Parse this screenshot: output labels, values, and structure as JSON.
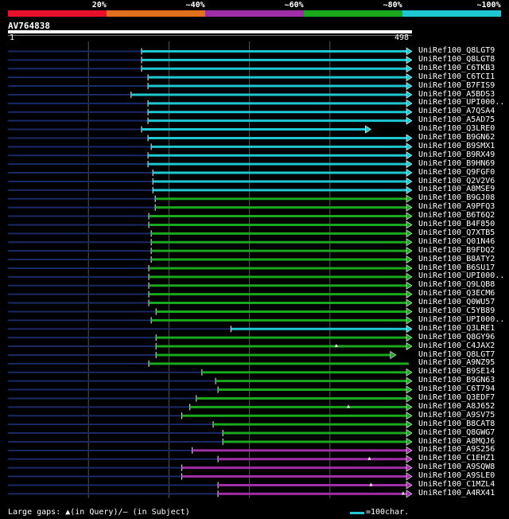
{
  "legend": {
    "segments": [
      {
        "color": "#e8102a",
        "label": "20%"
      },
      {
        "color": "#e0701e",
        "label": "~40%"
      },
      {
        "color": "#a02ea8",
        "label": "~60%"
      },
      {
        "color": "#1aa81e",
        "label": "~80%"
      },
      {
        "color": "#1ec8d2",
        "label": "~100%"
      }
    ]
  },
  "query": {
    "id": "AV764838",
    "start": "1",
    "end": "498"
  },
  "colors": {
    "cyan": "#1ec8d2",
    "green": "#1aa81e",
    "magenta": "#a02ea8",
    "unaligned": "#1a2a66",
    "grid": "#555555"
  },
  "hits": [
    {
      "label": "UniRef100_Q8LGT9",
      "start": 166,
      "end": 498,
      "color": "cyan",
      "arrow": true,
      "marker": null
    },
    {
      "label": "UniRef100_Q8LGT8",
      "start": 166,
      "end": 498,
      "color": "cyan",
      "arrow": true,
      "marker": null
    },
    {
      "label": "UniRef100_C6TKB3",
      "start": 166,
      "end": 498,
      "color": "cyan",
      "arrow": true,
      "marker": null
    },
    {
      "label": "UniRef100_C6TCI1",
      "start": 174,
      "end": 498,
      "color": "cyan",
      "arrow": true,
      "marker": null
    },
    {
      "label": "UniRef100_B7FIS9",
      "start": 174,
      "end": 498,
      "color": "cyan",
      "arrow": true,
      "marker": null
    },
    {
      "label": "UniRef100_A5BDS3",
      "start": 153,
      "end": 498,
      "color": "cyan",
      "arrow": true,
      "marker": null
    },
    {
      "label": "UniRef100_UPI000..",
      "start": 174,
      "end": 498,
      "color": "cyan",
      "arrow": true,
      "marker": null
    },
    {
      "label": "UniRef100_A7QSA4",
      "start": 174,
      "end": 498,
      "color": "cyan",
      "arrow": true,
      "marker": null
    },
    {
      "label": "UniRef100_A5AD75",
      "start": 174,
      "end": 498,
      "color": "cyan",
      "arrow": true,
      "marker": null
    },
    {
      "label": "UniRef100_Q3LRE0",
      "start": 166,
      "end": 447,
      "color": "cyan",
      "arrow": true,
      "marker": null
    },
    {
      "label": "UniRef100_B9GN62",
      "start": 174,
      "end": 498,
      "color": "cyan",
      "arrow": true,
      "marker": null
    },
    {
      "label": "UniRef100_B9SMX1",
      "start": 178,
      "end": 498,
      "color": "cyan",
      "arrow": true,
      "marker": null
    },
    {
      "label": "UniRef100_B9RX49",
      "start": 174,
      "end": 498,
      "color": "cyan",
      "arrow": true,
      "marker": null
    },
    {
      "label": "UniRef100_B9HN69",
      "start": 174,
      "end": 498,
      "color": "cyan",
      "arrow": true,
      "marker": null
    },
    {
      "label": "UniRef100_Q9FGF0",
      "start": 180,
      "end": 498,
      "color": "cyan",
      "arrow": true,
      "marker": null
    },
    {
      "label": "UniRef100_Q2V2V6",
      "start": 180,
      "end": 498,
      "color": "cyan",
      "arrow": true,
      "marker": null
    },
    {
      "label": "UniRef100_A8MSE9",
      "start": 180,
      "end": 498,
      "color": "cyan",
      "arrow": true,
      "marker": null
    },
    {
      "label": "UniRef100_B9GJ08",
      "start": 183,
      "end": 498,
      "color": "green",
      "arrow": true,
      "marker": null
    },
    {
      "label": "UniRef100_A9PFQ3",
      "start": 183,
      "end": 498,
      "color": "green",
      "arrow": true,
      "marker": null
    },
    {
      "label": "UniRef100_B6T6Q2",
      "start": 175,
      "end": 498,
      "color": "green",
      "arrow": true,
      "marker": null
    },
    {
      "label": "UniRef100_B4F850",
      "start": 175,
      "end": 498,
      "color": "green",
      "arrow": true,
      "marker": null
    },
    {
      "label": "UniRef100_Q7XTB5",
      "start": 178,
      "end": 498,
      "color": "green",
      "arrow": true,
      "marker": null
    },
    {
      "label": "UniRef100_Q01N46",
      "start": 178,
      "end": 498,
      "color": "green",
      "arrow": true,
      "marker": null
    },
    {
      "label": "UniRef100_B9FDQ2",
      "start": 178,
      "end": 498,
      "color": "green",
      "arrow": true,
      "marker": null
    },
    {
      "label": "UniRef100_B8ATY2",
      "start": 178,
      "end": 498,
      "color": "green",
      "arrow": true,
      "marker": null
    },
    {
      "label": "UniRef100_B6SU17",
      "start": 175,
      "end": 498,
      "color": "green",
      "arrow": true,
      "marker": null
    },
    {
      "label": "UniRef100_UPI000..",
      "start": 175,
      "end": 498,
      "color": "green",
      "arrow": true,
      "marker": null
    },
    {
      "label": "UniRef100_Q9LQB8",
      "start": 175,
      "end": 498,
      "color": "green",
      "arrow": true,
      "marker": null
    },
    {
      "label": "UniRef100_Q3ECM6",
      "start": 175,
      "end": 498,
      "color": "green",
      "arrow": true,
      "marker": null
    },
    {
      "label": "UniRef100_Q0WU57",
      "start": 175,
      "end": 498,
      "color": "green",
      "arrow": true,
      "marker": null
    },
    {
      "label": "UniRef100_C5YB89",
      "start": 184,
      "end": 498,
      "color": "green",
      "arrow": true,
      "marker": null
    },
    {
      "label": "UniRef100_UPI000..",
      "start": 178,
      "end": 498,
      "color": "green",
      "arrow": true,
      "marker": null
    },
    {
      "label": "UniRef100_Q3LRE1",
      "start": 277,
      "end": 498,
      "color": "cyan",
      "arrow": true,
      "marker": null
    },
    {
      "label": "UniRef100_Q8GY96",
      "start": 184,
      "end": 498,
      "color": "green",
      "arrow": true,
      "marker": null
    },
    {
      "label": "UniRef100_C4JAX2",
      "start": 184,
      "end": 498,
      "color": "green",
      "arrow": true,
      "marker": 408
    },
    {
      "label": "UniRef100_Q8LGT7",
      "start": 184,
      "end": 478,
      "color": "green",
      "arrow": true,
      "marker": null
    },
    {
      "label": "UniRef100_A9NZ95",
      "start": 175,
      "end": 498,
      "color": "green",
      "arrow": false,
      "marker": null
    },
    {
      "label": "UniRef100_B9SE14",
      "start": 241,
      "end": 498,
      "color": "green",
      "arrow": true,
      "marker": null
    },
    {
      "label": "UniRef100_B9GN63",
      "start": 258,
      "end": 498,
      "color": "green",
      "arrow": true,
      "marker": null
    },
    {
      "label": "UniRef100_C6T794",
      "start": 261,
      "end": 498,
      "color": "green",
      "arrow": true,
      "marker": null
    },
    {
      "label": "UniRef100_Q3EDF7",
      "start": 234,
      "end": 498,
      "color": "green",
      "arrow": true,
      "marker": null
    },
    {
      "label": "UniRef100_A8J652",
      "start": 226,
      "end": 498,
      "color": "green",
      "arrow": true,
      "marker": 423
    },
    {
      "label": "UniRef100_A9SV75",
      "start": 216,
      "end": 498,
      "color": "green",
      "arrow": true,
      "marker": null
    },
    {
      "label": "UniRef100_B8CAT8",
      "start": 255,
      "end": 498,
      "color": "green",
      "arrow": true,
      "marker": null
    },
    {
      "label": "UniRef100_Q8GWG7",
      "start": 267,
      "end": 498,
      "color": "green",
      "arrow": true,
      "marker": null
    },
    {
      "label": "UniRef100_A8MQJ6",
      "start": 267,
      "end": 498,
      "color": "green",
      "arrow": true,
      "marker": null
    },
    {
      "label": "UniRef100_A9S256",
      "start": 229,
      "end": 498,
      "color": "magenta",
      "arrow": true,
      "marker": null
    },
    {
      "label": "UniRef100_C1EHZ1",
      "start": 261,
      "end": 498,
      "color": "magenta",
      "arrow": true,
      "marker": 449
    },
    {
      "label": "UniRef100_A9SQW8",
      "start": 216,
      "end": 498,
      "color": "magenta",
      "arrow": true,
      "marker": null
    },
    {
      "label": "UniRef100_A9SLE0",
      "start": 216,
      "end": 498,
      "color": "magenta",
      "arrow": true,
      "marker": null
    },
    {
      "label": "UniRef100_C1MZL4",
      "start": 261,
      "end": 498,
      "color": "magenta",
      "arrow": true,
      "marker": 451
    },
    {
      "label": "UniRef100_A4RX41",
      "start": 261,
      "end": 498,
      "color": "magenta",
      "arrow": true,
      "marker": 491
    }
  ],
  "footer": {
    "text": "Large gaps: ▲(in Query)/– (in Subject)",
    "scale": "=100char."
  }
}
